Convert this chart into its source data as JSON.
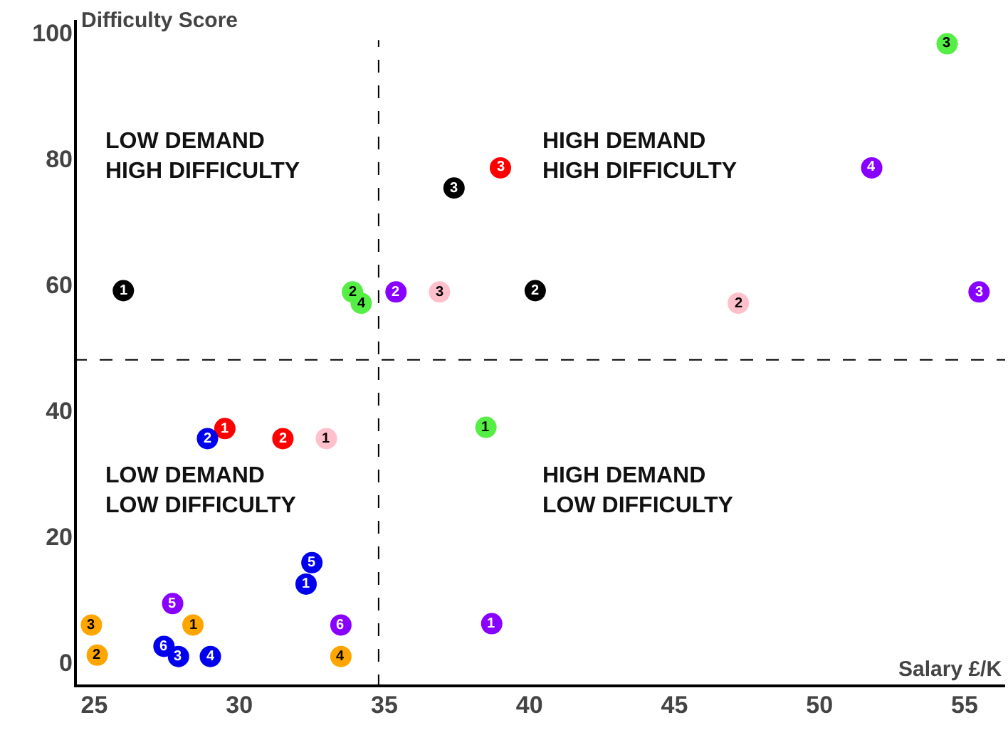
{
  "chart_data": {
    "type": "scatter",
    "xlabel": "Salary £/K",
    "ylabel": "Difficulty Score",
    "xlim": [
      24.3,
      56.4
    ],
    "ylim": [
      -4,
      102
    ],
    "xticks": [
      25,
      30,
      35,
      40,
      45,
      50,
      55
    ],
    "yticks": [
      0,
      20,
      40,
      60,
      80,
      100
    ],
    "grid": false,
    "marker": "circle",
    "ref_lines": [
      {
        "axis": "x",
        "value": 34.8,
        "line_style": "dashed",
        "color": "#000000"
      },
      {
        "axis": "y",
        "value": 48,
        "line_style": "dashed",
        "color": "#000000"
      }
    ],
    "annotations": [
      "LOW DEMAND\nHIGH DIFFICULTY",
      "HIGH DEMAND\nHIGH DIFFICULTY",
      "LOW DEMAND\nLOW DIFFICULTY",
      "HIGH DEMAND\nLOW DIFFICULTY",
      {
        "text": "1",
        "x": 26.0,
        "y": 59
      },
      {
        "text": "2",
        "x": 40.2,
        "y": 59
      },
      {
        "text": "3",
        "x": 37.4,
        "y": 75.3
      },
      {
        "text": "1",
        "x": 29.5,
        "y": 37.1
      },
      {
        "text": "2",
        "x": 31.5,
        "y": 35.5
      },
      {
        "text": "3",
        "x": 39.0,
        "y": 78.5
      },
      {
        "text": "1",
        "x": 38.5,
        "y": 37.3
      },
      {
        "text": "2",
        "x": 33.9,
        "y": 58.8
      },
      {
        "text": "3",
        "x": 54.4,
        "y": 98.2
      },
      {
        "text": "4",
        "x": 34.2,
        "y": 57.0
      },
      {
        "text": "1",
        "x": 38.7,
        "y": 6.1
      },
      {
        "text": "2",
        "x": 35.4,
        "y": 58.8
      },
      {
        "text": "3",
        "x": 55.5,
        "y": 58.8
      },
      {
        "text": "4",
        "x": 51.8,
        "y": 78.5
      },
      {
        "text": "5",
        "x": 27.7,
        "y": 9.3
      },
      {
        "text": "6",
        "x": 33.5,
        "y": 5.9
      },
      {
        "text": "1",
        "x": 33.0,
        "y": 35.5
      },
      {
        "text": "2",
        "x": 47.2,
        "y": 57.0
      },
      {
        "text": "3",
        "x": 36.9,
        "y": 58.8
      },
      {
        "text": "1",
        "x": 32.3,
        "y": 12.4
      },
      {
        "text": "2",
        "x": 28.9,
        "y": 35.5
      },
      {
        "text": "3",
        "x": 27.9,
        "y": 0.9
      },
      {
        "text": "4",
        "x": 29.0,
        "y": 0.9
      },
      {
        "text": "5",
        "x": 32.5,
        "y": 15.8
      },
      {
        "text": "6",
        "x": 27.4,
        "y": 2.5
      },
      {
        "text": "1",
        "x": 28.4,
        "y": 5.9
      },
      {
        "text": "2",
        "x": 25.1,
        "y": 1.1
      },
      {
        "text": "3",
        "x": 24.9,
        "y": 5.9
      },
      {
        "text": "4",
        "x": 33.5,
        "y": 0.9
      }
    ],
    "series": [
      {
        "color": "#000000",
        "x": [
          26.0,
          40.2,
          37.4
        ],
        "values": [
          59,
          59,
          75.3
        ]
      },
      {
        "color": "#ff0000",
        "x": [
          29.5,
          31.5,
          39.0
        ],
        "values": [
          37.1,
          35.5,
          78.5
        ]
      },
      {
        "color": "#55ee44",
        "x": [
          38.5,
          33.9,
          54.4,
          34.2
        ],
        "values": [
          37.3,
          58.8,
          98.2,
          57.0
        ]
      },
      {
        "color": "#8800ff",
        "x": [
          38.7,
          35.4,
          55.5,
          51.8,
          27.7,
          33.5
        ],
        "values": [
          6.1,
          58.8,
          58.8,
          78.5,
          9.3,
          5.9
        ]
      },
      {
        "color": "#ffc0cb",
        "x": [
          33.0,
          47.2,
          36.9
        ],
        "values": [
          35.5,
          57.0,
          58.8
        ]
      },
      {
        "color": "#0000ee",
        "x": [
          32.3,
          28.9,
          27.9,
          29.0,
          32.5,
          27.4
        ],
        "values": [
          12.4,
          35.5,
          0.9,
          0.9,
          15.8,
          2.5
        ]
      },
      {
        "color": "#ffa500",
        "x": [
          28.4,
          25.1,
          24.9,
          33.5
        ],
        "values": [
          5.9,
          1.1,
          5.9,
          0.9
        ]
      }
    ]
  }
}
